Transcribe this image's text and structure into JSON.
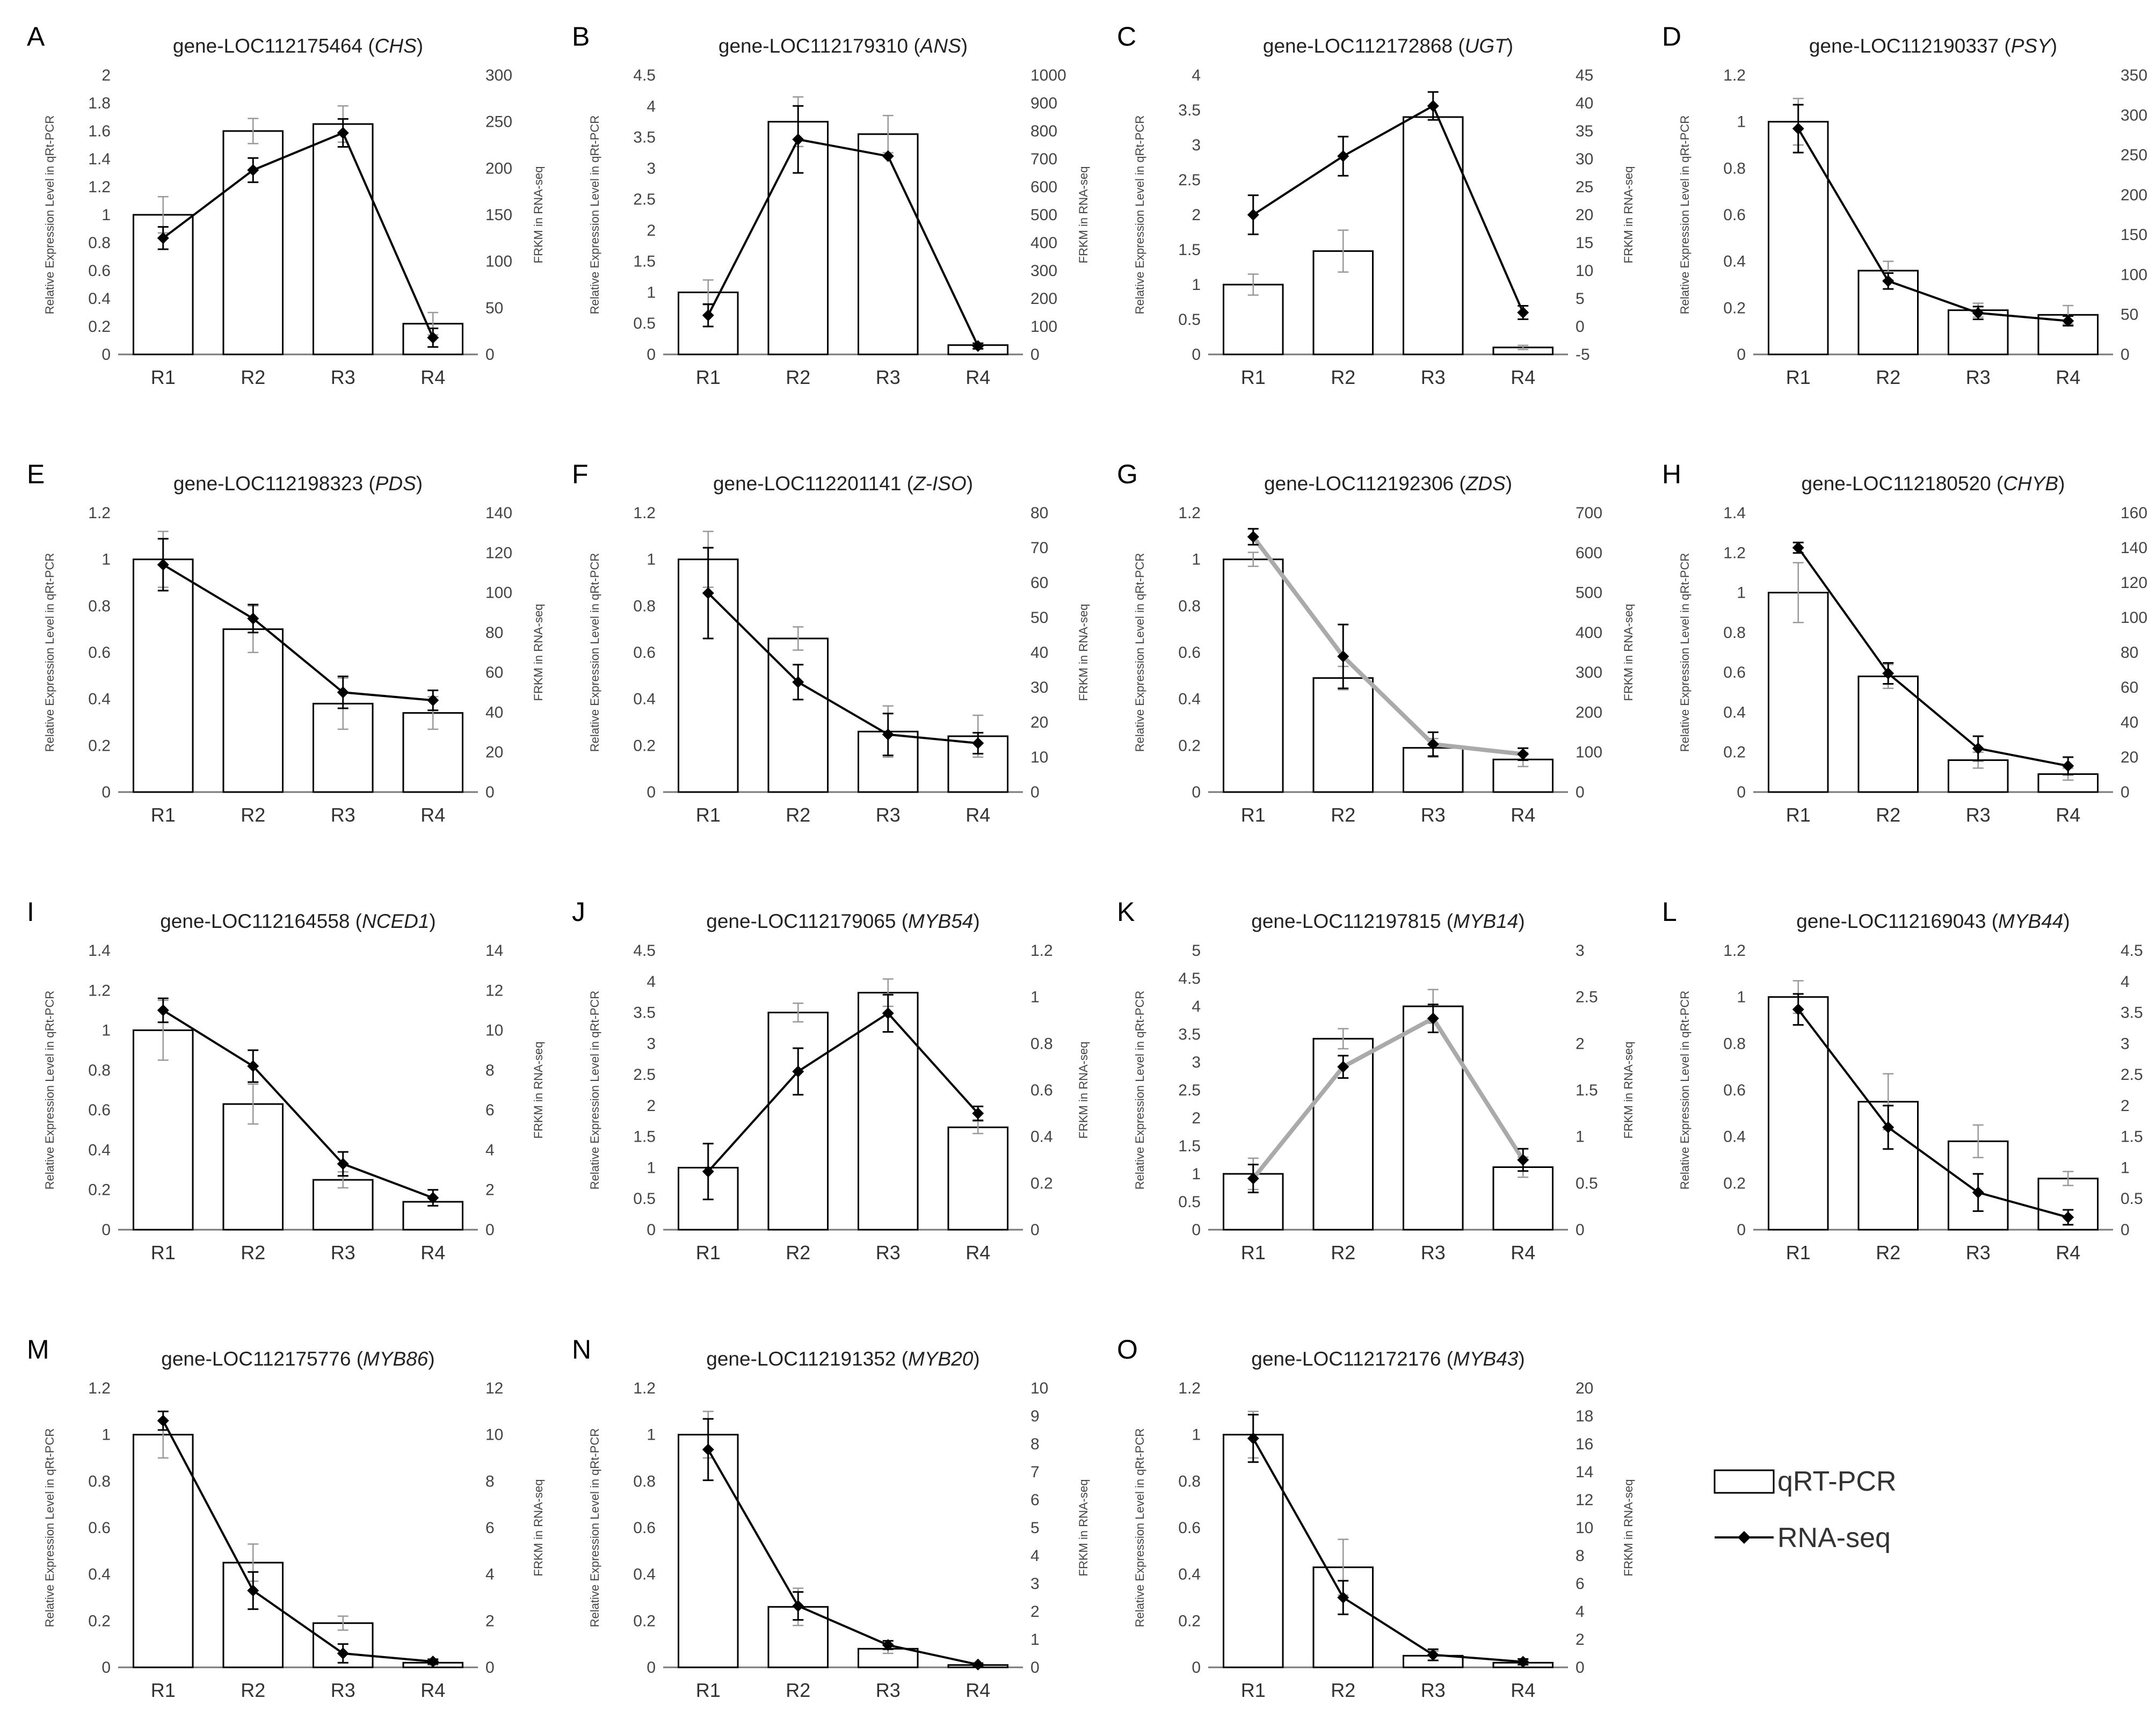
{
  "figure": {
    "left_axis_label": "Relative Expression Level in qRt-PCR",
    "right_axis_label": "FRKM in RNA-seq",
    "legend": [
      {
        "label": "qRT-PCR",
        "icon": "bar-swatch"
      },
      {
        "label": "RNA-seq",
        "icon": "line-diamond-marker"
      }
    ]
  },
  "chart_data": [
    {
      "panel": "A",
      "type": "bar+line",
      "title": "gene-LOC112175464 (",
      "gene": "CHS",
      "title_end": ")",
      "categories": [
        "R1",
        "R2",
        "R3",
        "R4"
      ],
      "left": {
        "min": 0,
        "max": 2,
        "step": 0.2,
        "ticks": [
          "0",
          "0.2",
          "0.4",
          "0.6",
          "0.8",
          "1",
          "1.2",
          "1.4",
          "1.6",
          "1.8",
          "2"
        ]
      },
      "right": {
        "min": 0,
        "max": 300,
        "step": 50,
        "ticks": [
          "0",
          "50",
          "100",
          "150",
          "200",
          "250",
          "300"
        ]
      },
      "qrtpcr": [
        1.0,
        1.6,
        1.65,
        0.22
      ],
      "qrtpcr_err": [
        0.13,
        0.09,
        0.13,
        0.08
      ],
      "rnaseq": [
        125,
        198,
        238,
        18
      ],
      "rnaseq_err": [
        12,
        13,
        15,
        10
      ],
      "line_color": "#000000"
    },
    {
      "panel": "B",
      "type": "bar+line",
      "title": "gene-LOC112179310 (",
      "gene": "ANS",
      "title_end": ")",
      "categories": [
        "R1",
        "R2",
        "R3",
        "R4"
      ],
      "left": {
        "min": 0,
        "max": 4.5,
        "step": 0.5,
        "ticks": [
          "0",
          "0.5",
          "1",
          "1.5",
          "2",
          "2.5",
          "3",
          "3.5",
          "4",
          "4.5"
        ]
      },
      "right": {
        "min": 0,
        "max": 1000,
        "step": 100,
        "ticks": [
          "0",
          "100",
          "200",
          "300",
          "400",
          "500",
          "600",
          "700",
          "800",
          "900",
          "1000"
        ]
      },
      "qrtpcr": [
        1.0,
        3.75,
        3.55,
        0.15
      ],
      "qrtpcr_err": [
        0.2,
        0.4,
        0.3,
        0.03
      ],
      "rnaseq": [
        140,
        770,
        710,
        30
      ],
      "rnaseq_err": [
        40,
        120,
        0,
        10
      ],
      "line_color": "#000000"
    },
    {
      "panel": "C",
      "type": "bar+line",
      "title": "gene-LOC112172868 (",
      "gene": "UGT",
      "title_end": ")",
      "categories": [
        "R1",
        "R2",
        "R3",
        "R4"
      ],
      "left": {
        "min": 0,
        "max": 4,
        "step": 0.5,
        "ticks": [
          "0",
          "0.5",
          "1",
          "1.5",
          "2",
          "2.5",
          "3",
          "3.5",
          "4"
        ]
      },
      "right": {
        "min": -5,
        "max": 45,
        "step": 5,
        "ticks": [
          "-5",
          "0",
          "5",
          "10",
          "15",
          "20",
          "25",
          "30",
          "35",
          "40",
          "45"
        ]
      },
      "qrtpcr": [
        1.0,
        1.48,
        3.4,
        0.1
      ],
      "qrtpcr_err": [
        0.15,
        0.3,
        0.0,
        0.03
      ],
      "rnaseq": [
        20,
        30.5,
        39.5,
        2.5
      ],
      "rnaseq_err": [
        3.5,
        3.5,
        2.5,
        1.2
      ],
      "line_color": "#000000"
    },
    {
      "panel": "D",
      "type": "bar+line",
      "title": "gene-LOC112190337 (",
      "gene": "PSY",
      "title_end": ")",
      "categories": [
        "R1",
        "R2",
        "R3",
        "R4"
      ],
      "left": {
        "min": 0,
        "max": 1.2,
        "step": 0.2,
        "ticks": [
          "0",
          "0.2",
          "0.4",
          "0.6",
          "0.8",
          "1",
          "1.2"
        ]
      },
      "right": {
        "min": 0,
        "max": 350,
        "step": 50,
        "ticks": [
          "0",
          "50",
          "100",
          "150",
          "200",
          "250",
          "300",
          "350"
        ]
      },
      "qrtpcr": [
        1.0,
        0.36,
        0.19,
        0.17
      ],
      "qrtpcr_err": [
        0.1,
        0.04,
        0.03,
        0.04
      ],
      "rnaseq": [
        283,
        92,
        52,
        42
      ],
      "rnaseq_err": [
        30,
        10,
        8,
        6
      ],
      "line_color": "#000000"
    },
    {
      "panel": "E",
      "type": "bar+line",
      "title": "gene-LOC112198323 (",
      "gene": "PDS",
      "title_end": ")",
      "categories": [
        "R1",
        "R2",
        "R3",
        "R4"
      ],
      "left": {
        "min": 0,
        "max": 1.2,
        "step": 0.2,
        "ticks": [
          "0",
          "0.2",
          "0.4",
          "0.6",
          "0.8",
          "1",
          "1.2"
        ]
      },
      "right": {
        "min": 0,
        "max": 140,
        "step": 20,
        "ticks": [
          "0",
          "20",
          "40",
          "60",
          "80",
          "100",
          "120",
          "140"
        ]
      },
      "qrtpcr": [
        1.0,
        0.7,
        0.38,
        0.34
      ],
      "qrtpcr_err": [
        0.12,
        0.1,
        0.11,
        0.07
      ],
      "rnaseq": [
        114,
        87,
        50,
        46
      ],
      "rnaseq_err": [
        13,
        7,
        8,
        5
      ],
      "line_color": "#000000"
    },
    {
      "panel": "F",
      "type": "bar+line",
      "title": "gene-LOC112201141 (",
      "gene": "Z-ISO",
      "title_end": ")",
      "categories": [
        "R1",
        "R2",
        "R3",
        "R4"
      ],
      "left": {
        "min": 0,
        "max": 1.2,
        "step": 0.2,
        "ticks": [
          "0",
          "0.2",
          "0.4",
          "0.6",
          "0.8",
          "1",
          "1.2"
        ]
      },
      "right": {
        "min": 0,
        "max": 80,
        "step": 10,
        "ticks": [
          "0",
          "10",
          "20",
          "30",
          "40",
          "50",
          "60",
          "70",
          "80"
        ]
      },
      "qrtpcr": [
        1.0,
        0.66,
        0.26,
        0.24
      ],
      "qrtpcr_err": [
        0.12,
        0.05,
        0.11,
        0.09
      ],
      "rnaseq": [
        57,
        31.5,
        16.5,
        14
      ],
      "rnaseq_err": [
        13,
        5,
        6,
        3
      ],
      "line_color": "#000000"
    },
    {
      "panel": "G",
      "type": "bar+line",
      "title": "gene-LOC112192306 (",
      "gene": "ZDS",
      "title_end": ")",
      "categories": [
        "R1",
        "R2",
        "R3",
        "R4"
      ],
      "left": {
        "min": 0,
        "max": 1.2,
        "step": 0.2,
        "ticks": [
          "0",
          "0.2",
          "0.4",
          "0.6",
          "0.8",
          "1",
          "1.2"
        ]
      },
      "right": {
        "min": 0,
        "max": 700,
        "step": 100,
        "ticks": [
          "0",
          "100",
          "200",
          "300",
          "400",
          "500",
          "600",
          "700"
        ]
      },
      "qrtpcr": [
        1.0,
        0.49,
        0.19,
        0.14
      ],
      "qrtpcr_err": [
        0.03,
        0.05,
        0.04,
        0.03
      ],
      "rnaseq": [
        640,
        340,
        120,
        95
      ],
      "rnaseq_err": [
        20,
        80,
        30,
        15
      ],
      "line_color": "#aaaaaa"
    },
    {
      "panel": "H",
      "type": "bar+line",
      "title": "gene-LOC112180520 (",
      "gene": "CHYB",
      "title_end": ")",
      "categories": [
        "R1",
        "R2",
        "R3",
        "R4"
      ],
      "left": {
        "min": 0,
        "max": 1.4,
        "step": 0.2,
        "ticks": [
          "0",
          "0.2",
          "0.4",
          "0.6",
          "0.8",
          "1",
          "1.2",
          "1.4"
        ]
      },
      "right": {
        "min": 0,
        "max": 160,
        "step": 20,
        "ticks": [
          "0",
          "20",
          "40",
          "60",
          "80",
          "100",
          "120",
          "140",
          "160"
        ]
      },
      "qrtpcr": [
        1.0,
        0.58,
        0.16,
        0.09
      ],
      "qrtpcr_err": [
        0.15,
        0.06,
        0.04,
        0.03
      ],
      "rnaseq": [
        140,
        68,
        25,
        15
      ],
      "rnaseq_err": [
        3,
        6,
        7,
        5
      ],
      "line_color": "#000000"
    },
    {
      "panel": "I",
      "type": "bar+line",
      "title": "gene-LOC112164558 (",
      "gene": "NCED1",
      "title_end": ")",
      "categories": [
        "R1",
        "R2",
        "R3",
        "R4"
      ],
      "left": {
        "min": 0,
        "max": 1.4,
        "step": 0.2,
        "ticks": [
          "0",
          "0.2",
          "0.4",
          "0.6",
          "0.8",
          "1",
          "1.2",
          "1.4"
        ]
      },
      "right": {
        "min": 0,
        "max": 14,
        "step": 2,
        "ticks": [
          "0",
          "2",
          "4",
          "6",
          "8",
          "10",
          "12",
          "14"
        ]
      },
      "qrtpcr": [
        1.0,
        0.63,
        0.25,
        0.14
      ],
      "qrtpcr_err": [
        0.15,
        0.1,
        0.04,
        0.02
      ],
      "rnaseq": [
        11,
        8.2,
        3.3,
        1.6
      ],
      "rnaseq_err": [
        0.6,
        0.8,
        0.6,
        0.4
      ],
      "line_color": "#000000"
    },
    {
      "panel": "J",
      "type": "bar+line",
      "title": "gene-LOC112179065 (",
      "gene": "MYB54",
      "title_end": ")",
      "categories": [
        "R1",
        "R2",
        "R3",
        "R4"
      ],
      "left": {
        "min": 0,
        "max": 4.5,
        "step": 0.5,
        "ticks": [
          "0",
          "0.5",
          "1",
          "1.5",
          "2",
          "2.5",
          "3",
          "3.5",
          "4",
          "4.5"
        ]
      },
      "right": {
        "min": 0,
        "max": 1.2,
        "step": 0.2,
        "ticks": [
          "0",
          "0.2",
          "0.4",
          "0.6",
          "0.8",
          "1",
          "1.2"
        ]
      },
      "qrtpcr": [
        1.0,
        3.5,
        3.82,
        1.65
      ],
      "qrtpcr_err": [
        0.0,
        0.15,
        0.22,
        0.1
      ],
      "rnaseq": [
        0.25,
        0.68,
        0.93,
        0.5
      ],
      "rnaseq_err": [
        0.12,
        0.1,
        0.08,
        0.03
      ],
      "line_color": "#000000"
    },
    {
      "panel": "K",
      "type": "bar+line",
      "title": "gene-LOC112197815 (",
      "gene": "MYB14",
      "title_end": ")",
      "categories": [
        "R1",
        "R2",
        "R3",
        "R4"
      ],
      "left": {
        "min": 0,
        "max": 5,
        "step": 0.5,
        "ticks": [
          "0",
          "0.5",
          "1",
          "1.5",
          "2",
          "2.5",
          "3",
          "3.5",
          "4",
          "4.5",
          "5"
        ]
      },
      "right": {
        "min": 0,
        "max": 3,
        "step": 0.5,
        "ticks": [
          "0",
          "0.5",
          "1",
          "1.5",
          "2",
          "2.5",
          "3"
        ]
      },
      "qrtpcr": [
        1.0,
        3.42,
        4.0,
        1.12
      ],
      "qrtpcr_err": [
        0.28,
        0.18,
        0.3,
        0.18
      ],
      "rnaseq": [
        0.55,
        1.75,
        2.27,
        0.75
      ],
      "rnaseq_err": [
        0.15,
        0.12,
        0.15,
        0.12
      ],
      "line_color": "#aaaaaa"
    },
    {
      "panel": "L",
      "type": "bar+line",
      "title": "gene-LOC112169043 (",
      "gene": "MYB44",
      "title_end": ")",
      "categories": [
        "R1",
        "R2",
        "R3",
        "R4"
      ],
      "left": {
        "min": 0,
        "max": 1.2,
        "step": 0.2,
        "ticks": [
          "0",
          "0.2",
          "0.4",
          "0.6",
          "0.8",
          "1",
          "1.2"
        ]
      },
      "right": {
        "min": 0,
        "max": 4.5,
        "step": 0.5,
        "ticks": [
          "0",
          "0.5",
          "1",
          "1.5",
          "2",
          "2.5",
          "3",
          "3.5",
          "4",
          "4.5"
        ]
      },
      "qrtpcr": [
        1.0,
        0.55,
        0.38,
        0.22
      ],
      "qrtpcr_err": [
        0.07,
        0.12,
        0.07,
        0.03
      ],
      "rnaseq": [
        3.55,
        1.65,
        0.6,
        0.2
      ],
      "rnaseq_err": [
        0.25,
        0.35,
        0.3,
        0.12
      ],
      "line_color": "#000000"
    },
    {
      "panel": "M",
      "type": "bar+line",
      "title": "gene-LOC112175776 (",
      "gene": "MYB86",
      "title_end": ")",
      "categories": [
        "R1",
        "R2",
        "R3",
        "R4"
      ],
      "left": {
        "min": 0,
        "max": 1.2,
        "step": 0.2,
        "ticks": [
          "0",
          "0.2",
          "0.4",
          "0.6",
          "0.8",
          "1",
          "1.2"
        ]
      },
      "right": {
        "min": 0,
        "max": 12,
        "step": 2,
        "ticks": [
          "0",
          "2",
          "4",
          "6",
          "8",
          "10",
          "12"
        ]
      },
      "qrtpcr": [
        1.0,
        0.45,
        0.19,
        0.02
      ],
      "qrtpcr_err": [
        0.1,
        0.08,
        0.03,
        0.01
      ],
      "rnaseq": [
        10.6,
        3.3,
        0.6,
        0.25
      ],
      "rnaseq_err": [
        0.4,
        0.8,
        0.4,
        0.1
      ],
      "line_color": "#000000"
    },
    {
      "panel": "N",
      "type": "bar+line",
      "title": "gene-LOC112191352 (",
      "gene": "MYB20",
      "title_end": ")",
      "categories": [
        "R1",
        "R2",
        "R3",
        "R4"
      ],
      "left": {
        "min": 0,
        "max": 1.2,
        "step": 0.2,
        "ticks": [
          "0",
          "0.2",
          "0.4",
          "0.6",
          "0.8",
          "1",
          "1.2"
        ]
      },
      "right": {
        "min": 0,
        "max": 10,
        "step": 1,
        "ticks": [
          "0",
          "1",
          "2",
          "3",
          "4",
          "5",
          "6",
          "7",
          "8",
          "9",
          "10"
        ]
      },
      "qrtpcr": [
        1.0,
        0.26,
        0.08,
        0.01
      ],
      "qrtpcr_err": [
        0.1,
        0.08,
        0.02,
        0.0
      ],
      "rnaseq": [
        7.8,
        2.2,
        0.8,
        0.1
      ],
      "rnaseq_err": [
        1.1,
        0.5,
        0.15,
        0.05
      ],
      "line_color": "#000000"
    },
    {
      "panel": "O",
      "type": "bar+line",
      "title": "gene-LOC112172176 (",
      "gene": "MYB43",
      "title_end": ")",
      "categories": [
        "R1",
        "R2",
        "R3",
        "R4"
      ],
      "left": {
        "min": 0,
        "max": 1.2,
        "step": 0.2,
        "ticks": [
          "0",
          "0.2",
          "0.4",
          "0.6",
          "0.8",
          "1",
          "1.2"
        ]
      },
      "right": {
        "min": 0,
        "max": 20,
        "step": 2,
        "ticks": [
          "0",
          "2",
          "4",
          "6",
          "8",
          "10",
          "12",
          "14",
          "16",
          "18",
          "20"
        ]
      },
      "qrtpcr": [
        1.0,
        0.43,
        0.05,
        0.02
      ],
      "qrtpcr_err": [
        0.1,
        0.12,
        0.02,
        0.01
      ],
      "rnaseq": [
        16.4,
        5.0,
        0.9,
        0.4
      ],
      "rnaseq_err": [
        1.7,
        1.2,
        0.4,
        0.2
      ],
      "line_color": "#000000"
    }
  ]
}
